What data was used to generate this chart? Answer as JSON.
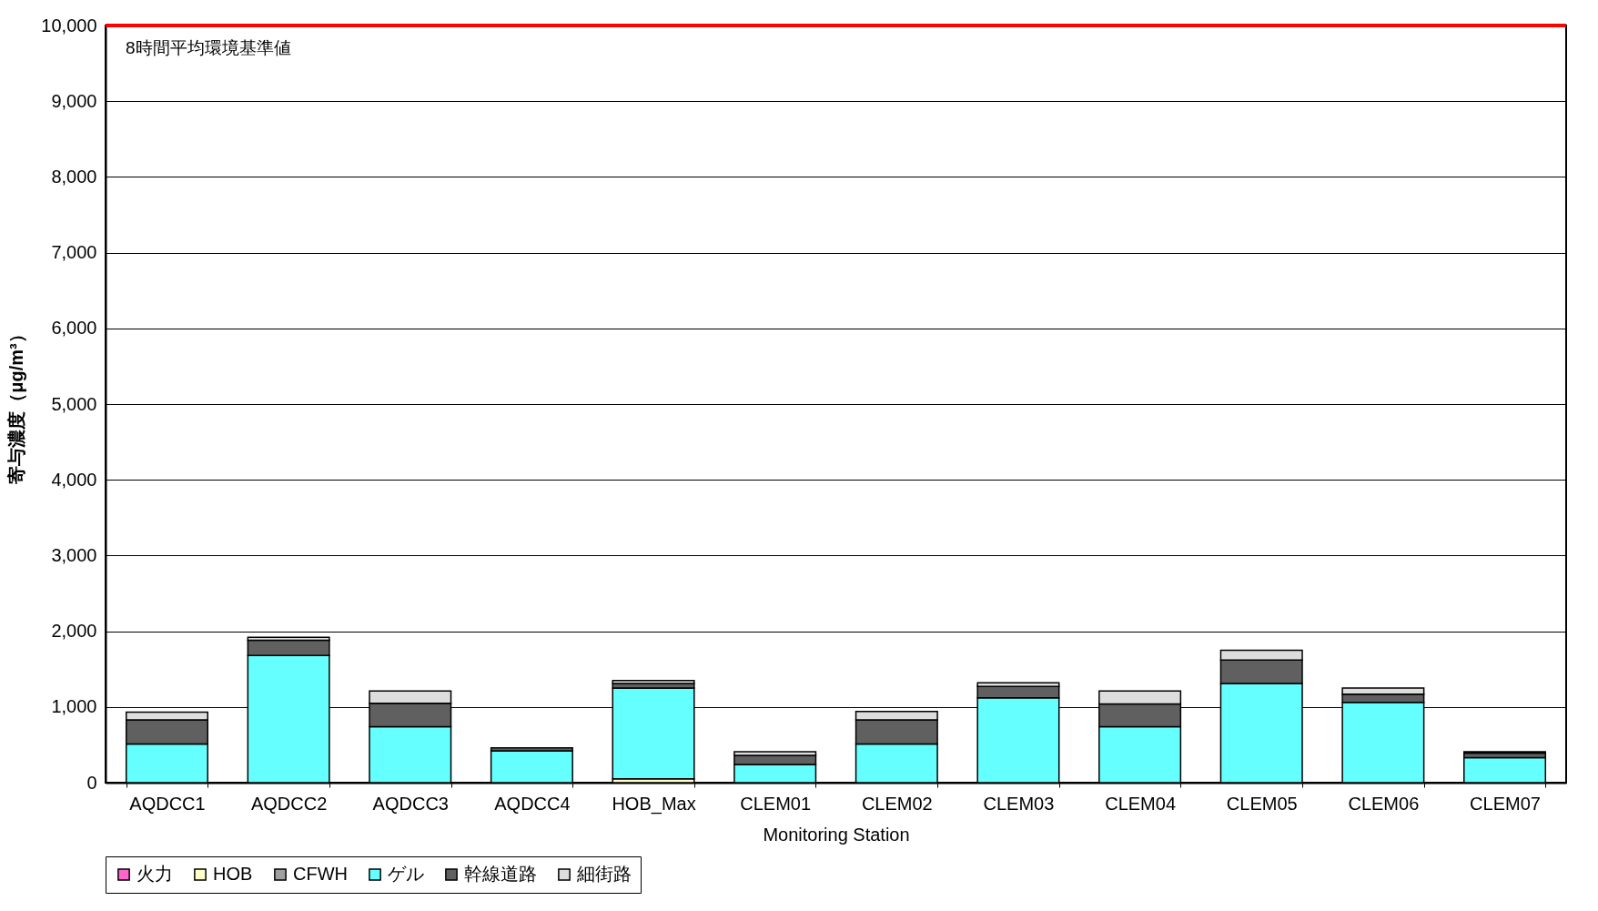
{
  "chart_data": {
    "type": "bar",
    "stacked": true,
    "xlabel": "Monitoring Station",
    "ylabel": "寄与濃度（μg/m³）",
    "categories": [
      "AQDCC1",
      "AQDCC2",
      "AQDCC3",
      "AQDCC4",
      "HOB_Max",
      "CLEM01",
      "CLEM02",
      "CLEM03",
      "CLEM04",
      "CLEM05",
      "CLEM06",
      "CLEM07"
    ],
    "series": [
      {
        "name": "火力",
        "color": "#ff66cc",
        "values": [
          null,
          null,
          null,
          null,
          null,
          null,
          null,
          null,
          null,
          null,
          null,
          null
        ]
      },
      {
        "name": "HOB",
        "color": "#ffffcc",
        "values": [
          null,
          null,
          null,
          null,
          50,
          null,
          null,
          null,
          null,
          null,
          null,
          null
        ]
      },
      {
        "name": "CFWH",
        "color": "#a0a0a0",
        "values": [
          null,
          null,
          null,
          null,
          null,
          null,
          null,
          null,
          null,
          null,
          null,
          null
        ]
      },
      {
        "name": "ゲル",
        "color": "#66ffff",
        "values": [
          510,
          1680,
          740,
          420,
          1200,
          240,
          510,
          1120,
          740,
          1310,
          1060,
          330
        ]
      },
      {
        "name": "幹線道路",
        "color": "#606060",
        "values": [
          320,
          200,
          310,
          40,
          60,
          120,
          320,
          150,
          300,
          310,
          110,
          60
        ]
      },
      {
        "name": "細街路",
        "color": "#dddddd",
        "values": [
          100,
          40,
          160,
          null,
          40,
          50,
          110,
          50,
          170,
          130,
          80,
          20
        ]
      }
    ],
    "ylim": [
      0,
      10000
    ],
    "yticks": [
      0,
      {
        "value": 1000,
        "label": "1,000"
      },
      {
        "value": 2000,
        "label": "2,000"
      },
      {
        "value": 3000,
        "label": "3,000"
      },
      {
        "value": 4000,
        "label": "4,000"
      },
      {
        "value": 5000,
        "label": "5,000"
      },
      {
        "value": 6000,
        "label": "6,000"
      },
      {
        "value": 7000,
        "label": "7,000"
      },
      {
        "value": 8000,
        "label": "8,000"
      },
      {
        "value": 9000,
        "label": "9,000"
      },
      {
        "value": 10000,
        "label": "10,000"
      }
    ],
    "grid": "y",
    "legend": "bottom",
    "ref_lines": [
      {
        "axis": "y",
        "value": 10000,
        "label": "8時間平均環境基準値",
        "color": "#ff0000"
      }
    ]
  }
}
